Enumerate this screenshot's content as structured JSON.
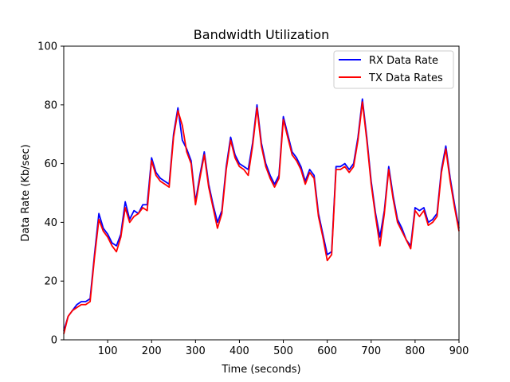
{
  "chart_data": {
    "type": "line",
    "title": "Bandwidth Utilization",
    "xlabel": "Time (seconds)",
    "ylabel": "Data Rate (Kb/sec)",
    "xlim": [
      0,
      900
    ],
    "ylim": [
      0,
      100
    ],
    "xticks": [
      100,
      200,
      300,
      400,
      500,
      600,
      700,
      800,
      900
    ],
    "yticks": [
      0,
      20,
      40,
      60,
      80,
      100
    ],
    "grid": false,
    "legend_position": "top-right",
    "x": [
      0,
      10,
      20,
      30,
      40,
      50,
      60,
      70,
      80,
      90,
      100,
      110,
      120,
      130,
      140,
      150,
      160,
      170,
      180,
      190,
      200,
      210,
      220,
      230,
      240,
      250,
      260,
      270,
      280,
      290,
      300,
      310,
      320,
      330,
      340,
      350,
      360,
      370,
      380,
      390,
      400,
      410,
      420,
      430,
      440,
      450,
      460,
      470,
      480,
      490,
      500,
      510,
      520,
      530,
      540,
      550,
      560,
      570,
      580,
      590,
      600,
      610,
      620,
      630,
      640,
      650,
      660,
      670,
      680,
      690,
      700,
      710,
      720,
      730,
      740,
      750,
      760,
      770,
      780,
      790,
      800,
      810,
      820,
      830,
      840,
      850,
      860,
      870,
      880,
      890,
      900
    ],
    "series": [
      {
        "name": "RX Data Rate",
        "color": "#0000ff",
        "values": [
          3,
          8,
          10,
          12,
          13,
          13,
          14,
          29,
          43,
          38,
          36,
          33,
          32,
          36,
          47,
          41,
          44,
          43,
          46,
          46,
          62,
          57,
          55,
          54,
          53,
          70,
          79,
          68,
          65,
          61,
          47,
          56,
          64,
          53,
          46,
          40,
          44,
          59,
          69,
          63,
          60,
          59,
          58,
          67,
          80,
          67,
          60,
          56,
          53,
          56,
          76,
          70,
          64,
          62,
          59,
          54,
          58,
          56,
          43,
          36,
          29,
          30,
          59,
          59,
          60,
          58,
          60,
          69,
          82,
          69,
          54,
          43,
          35,
          44,
          59,
          49,
          41,
          38,
          34,
          32,
          45,
          44,
          45,
          40,
          41,
          43,
          58,
          66,
          55,
          46,
          38
        ]
      },
      {
        "name": "TX Data Rates",
        "color": "#ff0000",
        "values": [
          2,
          8,
          10,
          11,
          12,
          12,
          13,
          28,
          41,
          37,
          35,
          32,
          30,
          35,
          45,
          40,
          42,
          43,
          45,
          44,
          61,
          56,
          54,
          53,
          52,
          69,
          78,
          73,
          64,
          60,
          46,
          55,
          63,
          52,
          45,
          38,
          43,
          58,
          68,
          62,
          59,
          58,
          56,
          66,
          79,
          66,
          59,
          55,
          52,
          55,
          75,
          69,
          63,
          61,
          58,
          53,
          57,
          55,
          42,
          35,
          27,
          29,
          58,
          58,
          59,
          57,
          59,
          68,
          81,
          68,
          53,
          42,
          32,
          43,
          58,
          48,
          40,
          37,
          34,
          31,
          44,
          42,
          44,
          39,
          40,
          42,
          57,
          65,
          54,
          45,
          37
        ]
      }
    ]
  }
}
